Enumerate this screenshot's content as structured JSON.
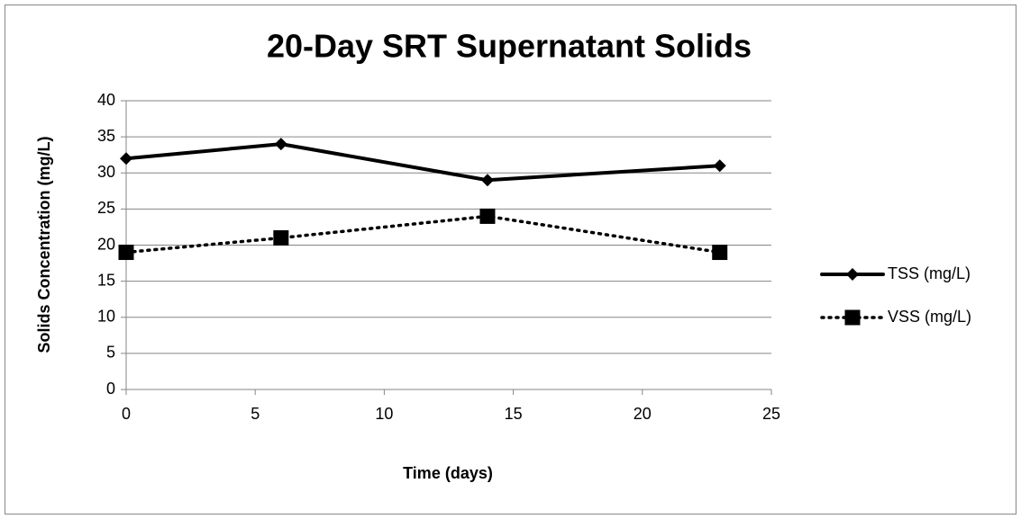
{
  "chart_data": {
    "type": "line",
    "title": "20-Day SRT Supernatant Solids",
    "xlabel": "Time (days)",
    "ylabel": "Solids Concentration (mg/L)",
    "x": [
      0,
      6,
      14,
      23
    ],
    "series": [
      {
        "name": "TSS (mg/L)",
        "color": "#000000",
        "marker": "diamond",
        "line_style": "solid",
        "values": [
          32,
          34,
          29,
          31
        ]
      },
      {
        "name": "VSS (mg/L)",
        "color": "#000000",
        "marker": "square",
        "line_style": "dotted",
        "values": [
          19,
          21,
          24,
          19
        ]
      }
    ],
    "xlim": [
      0,
      25
    ],
    "xticks": [
      0,
      5,
      10,
      15,
      20,
      25
    ],
    "ylim": [
      0,
      40
    ],
    "yticks": [
      0,
      5,
      10,
      15,
      20,
      25,
      30,
      35,
      40
    ],
    "grid": true,
    "legend": "right"
  }
}
